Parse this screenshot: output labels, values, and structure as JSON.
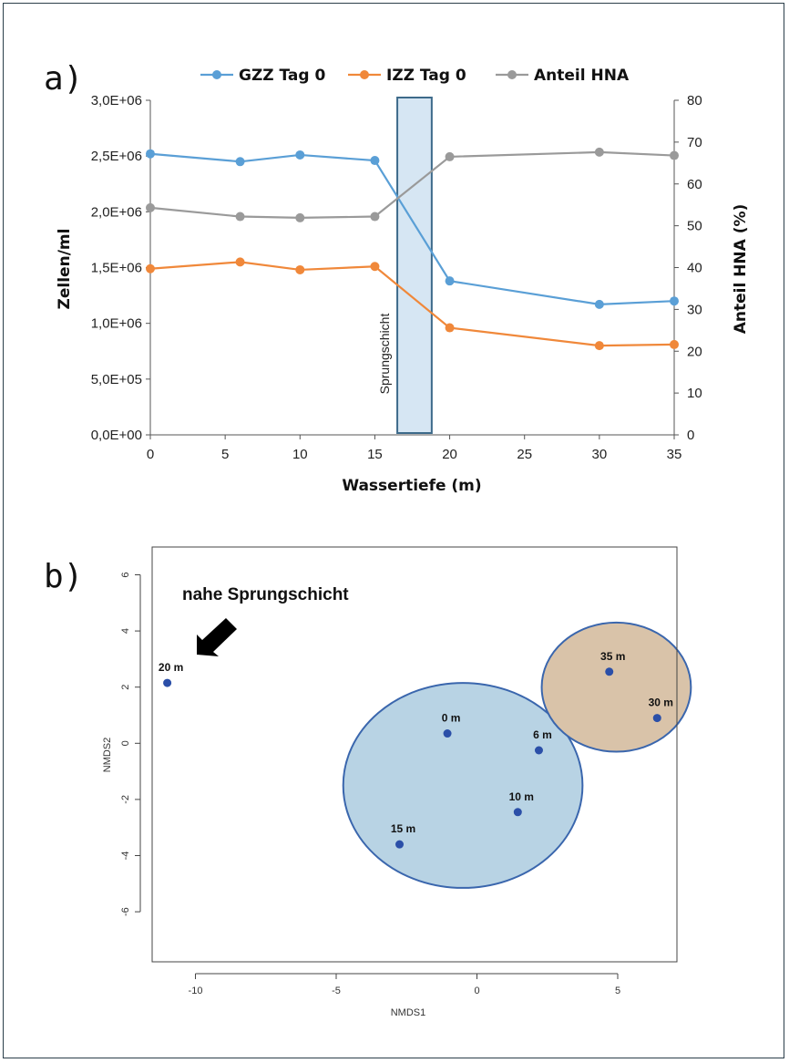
{
  "chart_data": [
    {
      "panel_label": "a)",
      "type": "line",
      "xlabel": "Wassertiefe (m)",
      "ylabel": "Zellen/ml",
      "y2label": "Anteil HNA (%)",
      "xlim": [
        0,
        35
      ],
      "ylim": [
        0,
        3000000
      ],
      "y2lim": [
        0,
        80
      ],
      "xticks": [
        0,
        5,
        10,
        15,
        20,
        25,
        30,
        35
      ],
      "yticks": [
        {
          "v": 0,
          "label": "0,0E+00"
        },
        {
          "v": 500000,
          "label": "5,0E+05"
        },
        {
          "v": 1000000,
          "label": "1,0E+06"
        },
        {
          "v": 1500000,
          "label": "1,5E+06"
        },
        {
          "v": 2000000,
          "label": "2,0E+06"
        },
        {
          "v": 2500000,
          "label": "2,5E+06"
        },
        {
          "v": 3000000,
          "label": "3,0E+06"
        }
      ],
      "y2ticks": [
        0,
        10,
        20,
        30,
        40,
        50,
        60,
        70,
        80
      ],
      "legend_position": "top",
      "series": [
        {
          "name": "GZZ Tag 0",
          "axis": "left",
          "color": "#5a9fd6",
          "x": [
            0,
            6,
            10,
            15,
            20,
            30,
            35
          ],
          "y": [
            2520000,
            2450000,
            2510000,
            2460000,
            1380000,
            1170000,
            1200000
          ]
        },
        {
          "name": "IZZ Tag 0",
          "axis": "left",
          "color": "#f0883a",
          "x": [
            0,
            6,
            10,
            15,
            20,
            30,
            35
          ],
          "y": [
            1490000,
            1550000,
            1480000,
            1510000,
            960000,
            800000,
            810000
          ]
        },
        {
          "name": "Anteil HNA",
          "axis": "right",
          "color": "#9a9a9a",
          "x": [
            0,
            6,
            10,
            15,
            20,
            30,
            35
          ],
          "y": [
            54.3,
            52.2,
            51.9,
            52.2,
            66.5,
            67.6,
            66.8
          ]
        }
      ],
      "band": {
        "x_from": 16.5,
        "x_to": 18.8,
        "label": "Sprungschicht",
        "fill": "#d6e6f3",
        "stroke": "#3d6a8a"
      }
    },
    {
      "panel_label": "b)",
      "type": "scatter",
      "xlabel": "NMDS1",
      "ylabel": "NMDS2",
      "xlim": [
        -12,
        7
      ],
      "ylim": [
        -7.5,
        6.5
      ],
      "xticks": [
        -10,
        -5,
        0,
        5
      ],
      "yticks": [
        -6,
        -4,
        -2,
        0,
        2,
        4,
        6
      ],
      "point_color": "#2b4fa8",
      "points": [
        {
          "label": "20 m",
          "x": -11.0,
          "y": 2.15
        },
        {
          "label": "0 m",
          "x": -1.05,
          "y": 0.35
        },
        {
          "label": "6 m",
          "x": 2.2,
          "y": -0.25
        },
        {
          "label": "10 m",
          "x": 1.45,
          "y": -2.45
        },
        {
          "label": "15 m",
          "x": -2.75,
          "y": -3.6
        },
        {
          "label": "35 m",
          "x": 4.7,
          "y": 2.55
        },
        {
          "label": "30 m",
          "x": 6.4,
          "y": 0.9
        }
      ],
      "groups": [
        {
          "cx": -0.5,
          "cy": -1.5,
          "rx": 4.25,
          "ry": 3.65,
          "fill": "#b8d3e4",
          "stroke": "#3a66ad"
        },
        {
          "cx": 4.95,
          "cy": 2.0,
          "rx": 2.65,
          "ry": 2.3,
          "fill": "#d9c3a9",
          "stroke": "#3a66ad"
        }
      ],
      "annotation": {
        "text": "nahe Sprungschicht"
      }
    }
  ]
}
